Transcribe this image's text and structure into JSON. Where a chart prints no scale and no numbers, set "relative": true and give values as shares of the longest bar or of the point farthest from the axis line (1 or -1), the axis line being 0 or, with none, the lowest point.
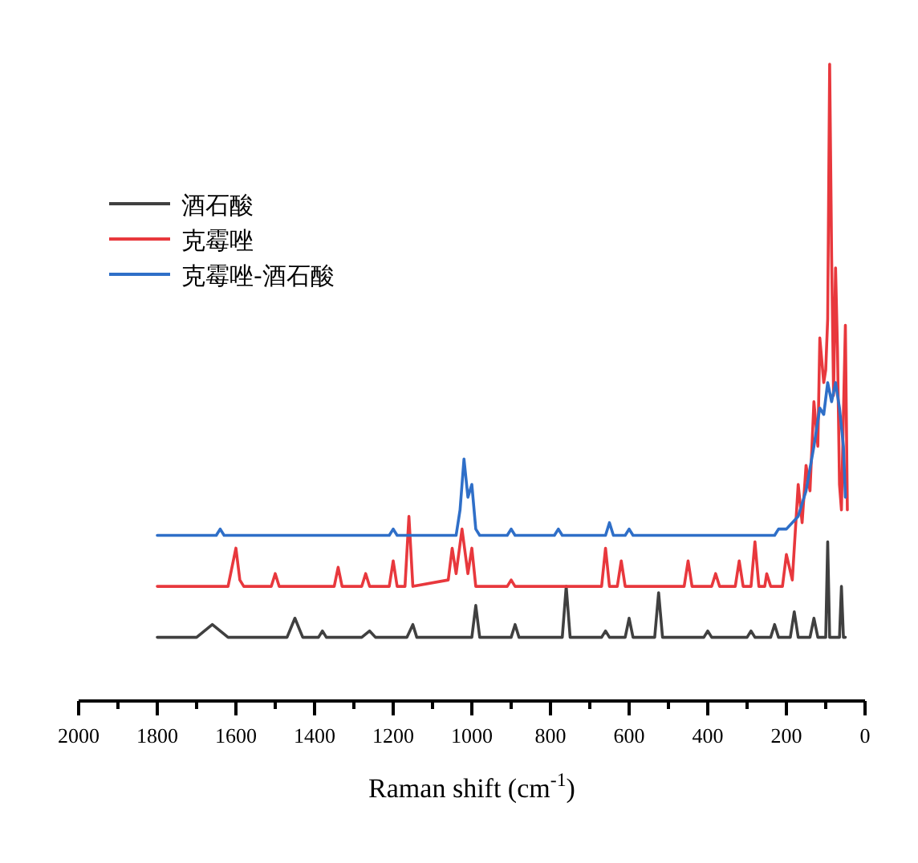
{
  "chart_data": {
    "type": "line",
    "relative": true,
    "xlabel": "Raman shift (cm$^{-1}$)",
    "legend": "top left",
    "xlim": [
      2000,
      0
    ],
    "xticks": [
      2000,
      {
        "value": 1900,
        "label": null
      },
      1800,
      {
        "value": 1700,
        "label": null
      },
      1600,
      {
        "value": 1500,
        "label": null
      },
      1400,
      {
        "value": 1300,
        "label": null
      },
      1200,
      {
        "value": 1100,
        "label": null
      },
      1000,
      {
        "value": 900,
        "label": null
      },
      800,
      {
        "value": 700,
        "label": null
      },
      600,
      {
        "value": 500,
        "label": null
      },
      400,
      {
        "value": 300,
        "label": null
      },
      200,
      {
        "value": 100,
        "label": null
      },
      0
    ],
    "series": [
      {
        "name": "酒石酸",
        "color": "#404040",
        "x": [
          1800,
          1700,
          1680,
          1660,
          1640,
          1620,
          1470,
          1450,
          1430,
          1390,
          1380,
          1370,
          1280,
          1260,
          1245,
          1165,
          1150,
          1140,
          1000,
          990,
          980,
          900,
          890,
          880,
          770,
          760,
          750,
          670,
          660,
          650,
          610,
          600,
          590,
          535,
          525,
          515,
          410,
          400,
          390,
          300,
          290,
          280,
          240,
          230,
          220,
          190,
          180,
          170,
          140,
          130,
          120,
          100,
          95,
          90,
          65,
          60,
          55,
          50
        ],
        "values": [
          0.1,
          0.1,
          0.11,
          0.12,
          0.11,
          0.1,
          0.1,
          0.13,
          0.1,
          0.1,
          0.11,
          0.1,
          0.1,
          0.11,
          0.1,
          0.1,
          0.12,
          0.1,
          0.1,
          0.15,
          0.1,
          0.1,
          0.12,
          0.1,
          0.1,
          0.18,
          0.1,
          0.1,
          0.11,
          0.1,
          0.1,
          0.13,
          0.1,
          0.1,
          0.17,
          0.1,
          0.1,
          0.11,
          0.1,
          0.1,
          0.11,
          0.1,
          0.1,
          0.12,
          0.1,
          0.1,
          0.14,
          0.1,
          0.1,
          0.13,
          0.1,
          0.1,
          0.25,
          0.1,
          0.1,
          0.18,
          0.1,
          0.1
        ]
      },
      {
        "name": "克霉唑",
        "color": "#e8383d",
        "x": [
          1800,
          1620,
          1600,
          1590,
          1580,
          1510,
          1500,
          1490,
          1350,
          1340,
          1330,
          1280,
          1270,
          1260,
          1210,
          1200,
          1190,
          1170,
          1160,
          1150,
          1060,
          1050,
          1040,
          1025,
          1010,
          1000,
          990,
          910,
          900,
          890,
          670,
          660,
          650,
          630,
          620,
          610,
          460,
          450,
          440,
          390,
          380,
          370,
          330,
          320,
          310,
          290,
          280,
          270,
          255,
          250,
          240,
          210,
          200,
          185,
          170,
          160,
          150,
          140,
          130,
          120,
          115,
          105,
          100,
          95,
          90,
          85,
          80,
          75,
          70,
          65,
          60,
          55,
          50,
          45
        ],
        "values": [
          0.18,
          0.18,
          0.24,
          0.19,
          0.18,
          0.18,
          0.2,
          0.18,
          0.18,
          0.21,
          0.18,
          0.18,
          0.2,
          0.18,
          0.18,
          0.22,
          0.18,
          0.18,
          0.29,
          0.18,
          0.19,
          0.24,
          0.2,
          0.27,
          0.2,
          0.24,
          0.18,
          0.18,
          0.19,
          0.18,
          0.18,
          0.24,
          0.18,
          0.18,
          0.22,
          0.18,
          0.18,
          0.22,
          0.18,
          0.18,
          0.2,
          0.18,
          0.18,
          0.22,
          0.18,
          0.18,
          0.25,
          0.18,
          0.18,
          0.2,
          0.18,
          0.18,
          0.23,
          0.19,
          0.34,
          0.28,
          0.37,
          0.33,
          0.47,
          0.4,
          0.57,
          0.5,
          0.52,
          0.6,
          1.0,
          0.7,
          0.48,
          0.68,
          0.55,
          0.34,
          0.3,
          0.45,
          0.59,
          0.3
        ]
      },
      {
        "name": "克霉唑-酒石酸",
        "color": "#2f6fc8",
        "x": [
          1800,
          1650,
          1640,
          1630,
          1210,
          1200,
          1190,
          1040,
          1030,
          1020,
          1010,
          1000,
          990,
          980,
          910,
          900,
          890,
          790,
          780,
          770,
          660,
          650,
          640,
          610,
          600,
          590,
          230,
          220,
          200,
          170,
          150,
          130,
          115,
          105,
          95,
          85,
          75,
          65,
          55,
          50
        ],
        "values": [
          0.26,
          0.26,
          0.27,
          0.26,
          0.26,
          0.27,
          0.26,
          0.26,
          0.3,
          0.38,
          0.32,
          0.34,
          0.27,
          0.26,
          0.26,
          0.27,
          0.26,
          0.26,
          0.27,
          0.26,
          0.26,
          0.28,
          0.26,
          0.26,
          0.27,
          0.26,
          0.26,
          0.27,
          0.27,
          0.29,
          0.33,
          0.4,
          0.46,
          0.45,
          0.5,
          0.47,
          0.5,
          0.46,
          0.4,
          0.32
        ]
      }
    ]
  }
}
